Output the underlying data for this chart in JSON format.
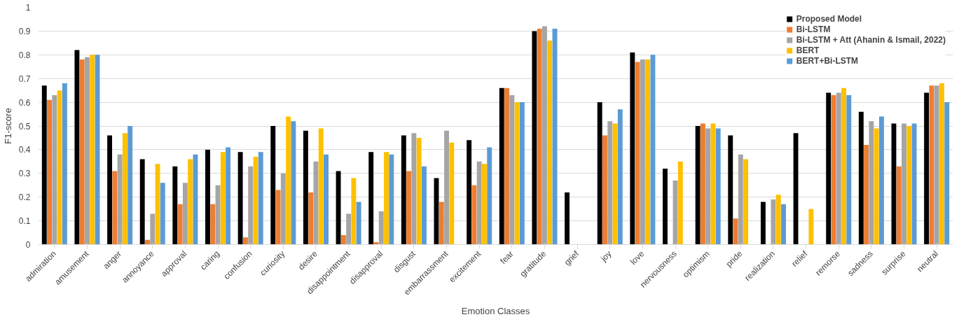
{
  "chart_data": {
    "type": "bar",
    "xlabel": "Emotion Classes",
    "ylabel": "F1-score",
    "categories": [
      "admiration",
      "amusement",
      "anger",
      "annoyance",
      "approval",
      "caring",
      "confusion",
      "curiosity",
      "desire",
      "disappointment",
      "disapproval",
      "disgust",
      "embarrassment",
      "excitement",
      "fear",
      "gratitude",
      "grief",
      "joy",
      "love",
      "nervousness",
      "optimism",
      "pride",
      "realization",
      "relief",
      "remorse",
      "sadness",
      "surprise",
      "neutral"
    ],
    "series": [
      {
        "name": "Proposed Model",
        "color": "#000000",
        "values": [
          0.67,
          0.82,
          0.46,
          0.36,
          0.33,
          0.4,
          0.39,
          0.5,
          0.48,
          0.31,
          0.39,
          0.46,
          0.28,
          0.44,
          0.66,
          0.9,
          0.22,
          0.6,
          0.81,
          0.32,
          0.5,
          0.46,
          0.18,
          0.47,
          0.64,
          0.56,
          0.51,
          0.64
        ]
      },
      {
        "name": "Bi-LSTM",
        "color": "#ed7d31",
        "values": [
          0.61,
          0.78,
          0.31,
          0.02,
          0.17,
          0.17,
          0.03,
          0.23,
          0.22,
          0.04,
          0.01,
          0.31,
          0.18,
          0.25,
          0.66,
          0.91,
          0,
          0.46,
          0.77,
          0,
          0.51,
          0.11,
          0,
          0,
          0.63,
          0.42,
          0.33,
          0.67
        ]
      },
      {
        "name": "Bi-LSTM + Att (Ahanin & Ismail, 2022)",
        "color": "#a5a5a5",
        "values": [
          0.63,
          0.79,
          0.38,
          0.13,
          0.26,
          0.25,
          0.33,
          0.3,
          0.35,
          0.13,
          0.14,
          0.47,
          0.48,
          0.35,
          0.63,
          0.92,
          0,
          0.52,
          0.78,
          0.27,
          0.49,
          0.38,
          0.19,
          0,
          0.64,
          0.52,
          0.51,
          0.67
        ]
      },
      {
        "name": "BERT",
        "color": "#ffc000",
        "values": [
          0.65,
          0.8,
          0.47,
          0.34,
          0.36,
          0.39,
          0.37,
          0.54,
          0.49,
          0.28,
          0.39,
          0.45,
          0.43,
          0.34,
          0.6,
          0.86,
          0,
          0.51,
          0.78,
          0.35,
          0.51,
          0.36,
          0.21,
          0.15,
          0.66,
          0.49,
          0.5,
          0.68
        ]
      },
      {
        "name": "BERT+Bi-LSTM",
        "color": "#5b9bd5",
        "values": [
          0.68,
          0.8,
          0.5,
          0.26,
          0.38,
          0.41,
          0.39,
          0.52,
          0.38,
          0.18,
          0.38,
          0.33,
          0,
          0.41,
          0.6,
          0.91,
          0,
          0.57,
          0.8,
          0,
          0.49,
          0,
          0.17,
          0,
          0.63,
          0.54,
          0.51,
          0.6
        ]
      }
    ],
    "ylim": [
      0,
      1
    ],
    "yticks": [
      0,
      0.1,
      0.2,
      0.3,
      0.4,
      0.5,
      0.6,
      0.7,
      0.8,
      0.9,
      1
    ],
    "grid": "y",
    "legend": "top right"
  }
}
